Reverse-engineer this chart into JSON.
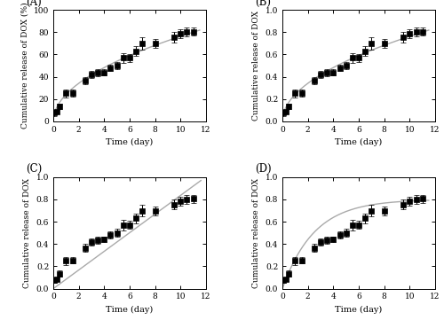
{
  "x_data": [
    0.1,
    0.25,
    0.5,
    1.0,
    1.5,
    2.5,
    3.0,
    3.5,
    4.0,
    4.5,
    5.0,
    5.5,
    6.0,
    6.5,
    7.0,
    8.0,
    9.5,
    10.0,
    10.5,
    11.0
  ],
  "y_data_pct": [
    7.5,
    8.5,
    13.5,
    25.0,
    25.5,
    36.5,
    42.0,
    43.5,
    44.0,
    48.0,
    50.0,
    57.0,
    57.0,
    63.0,
    70.0,
    70.0,
    75.5,
    78.5,
    80.0,
    80.5
  ],
  "y_err_pct": [
    2.5,
    1.5,
    2.5,
    3.5,
    3.0,
    3.5,
    3.0,
    3.0,
    2.5,
    3.0,
    3.5,
    4.5,
    3.5,
    4.5,
    5.5,
    4.0,
    4.5,
    4.0,
    4.0,
    3.5
  ],
  "y_data_norm": [
    0.075,
    0.085,
    0.135,
    0.25,
    0.255,
    0.365,
    0.42,
    0.435,
    0.44,
    0.48,
    0.5,
    0.57,
    0.57,
    0.63,
    0.7,
    0.7,
    0.755,
    0.785,
    0.8,
    0.805
  ],
  "y_err_norm": [
    0.025,
    0.015,
    0.025,
    0.035,
    0.03,
    0.035,
    0.03,
    0.03,
    0.025,
    0.03,
    0.035,
    0.045,
    0.035,
    0.045,
    0.055,
    0.04,
    0.045,
    0.04,
    0.04,
    0.035
  ],
  "xlabel": "Time (day)",
  "ylabel_A": "Cumulative release of DOX (%)",
  "ylabel_BCD": "Cumulative release of DOX",
  "label_A": "(A)",
  "label_B": "(B)",
  "label_C": "(C)",
  "label_D": "(D)",
  "marker_color": "black",
  "line_color": "#aaaaaa",
  "marker": "s",
  "marker_size": 4,
  "xlim": [
    0,
    12
  ],
  "ylim_A": [
    0,
    100
  ],
  "ylim_BCD": [
    0.0,
    1.0
  ],
  "yticks_A": [
    0,
    20,
    40,
    60,
    80,
    100
  ],
  "yticks_BCD": [
    0.0,
    0.2,
    0.4,
    0.6,
    0.8,
    1.0
  ],
  "xticks": [
    0,
    2,
    4,
    6,
    8,
    10,
    12
  ],
  "zero_order_line_x": [
    0,
    11.6
  ],
  "zero_order_line_y": [
    0,
    0.97
  ],
  "bg_color": "#ffffff"
}
